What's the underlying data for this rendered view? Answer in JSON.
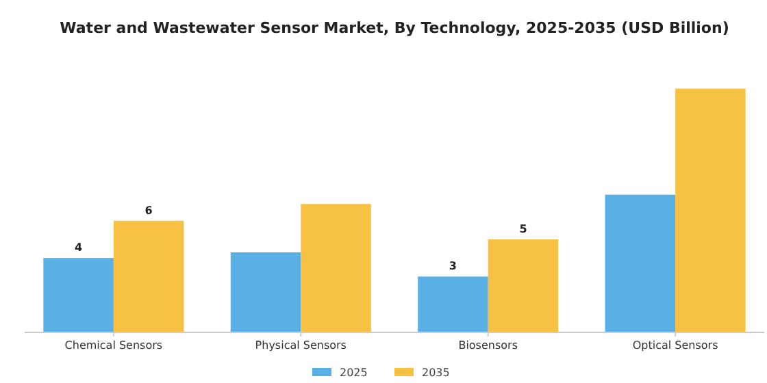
{
  "chart_data": {
    "type": "bar",
    "title": "Water and Wastewater Sensor Market, By Technology, 2025-2035 (USD Billion)",
    "categories": [
      "Chemical Sensors",
      "Physical Sensors",
      "Biosensors",
      "Optical Sensors"
    ],
    "series": [
      {
        "name": "2025",
        "color": "#5ab0e4",
        "values": [
          4,
          4.3,
          3,
          7.4
        ],
        "value_labels": [
          "4",
          null,
          "3",
          null
        ]
      },
      {
        "name": "2035",
        "color": "#f7c244",
        "values": [
          6,
          6.9,
          5,
          13.1
        ],
        "value_labels": [
          "6",
          null,
          "5",
          null
        ]
      }
    ],
    "legend": "bottom",
    "grid": false
  }
}
